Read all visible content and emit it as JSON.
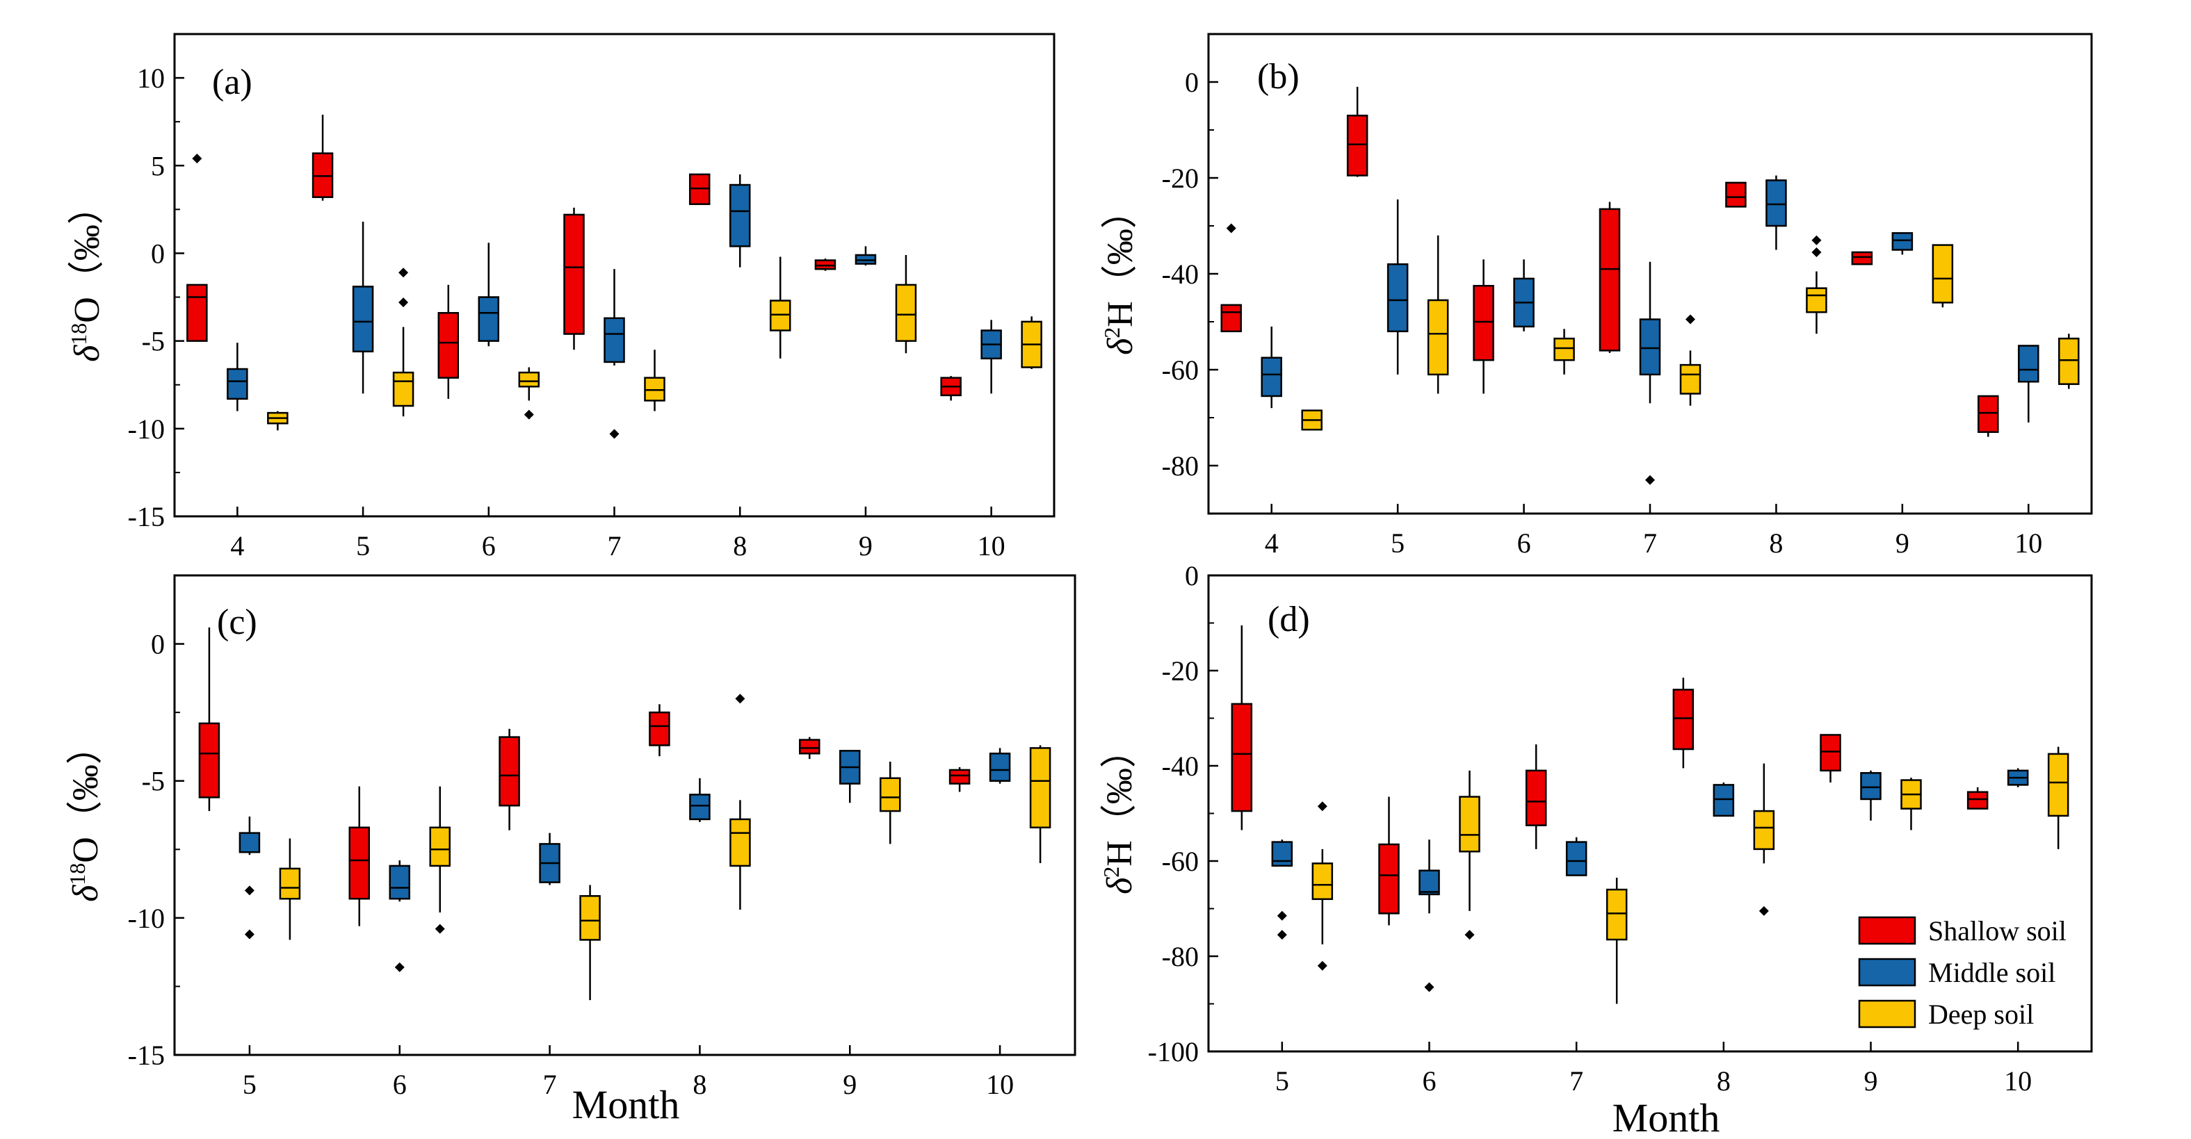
{
  "figure": {
    "x_label": "Month",
    "legend": [
      {
        "label": "Shallow soil",
        "color": "#ee0000"
      },
      {
        "label": "Middle soil",
        "color": "#1565a8"
      },
      {
        "label": "Deep soil",
        "color": "#fbc400"
      }
    ]
  },
  "chart_data": [
    {
      "type": "boxplot",
      "panel_label": "(a)",
      "ylabel": "δ18O (‰)",
      "ylabel_base": "δ",
      "ylabel_sup": "18",
      "ylabel_rest": "O（‰）",
      "xlabel": "",
      "categories": [
        "4",
        "5",
        "6",
        "7",
        "8",
        "9",
        "10"
      ],
      "ylim": [
        -15,
        12.5
      ],
      "yticks": [
        10,
        5,
        0,
        -5,
        -10,
        -15
      ],
      "ytick_labels": [
        "10",
        "5",
        "0",
        "-5",
        "-10",
        "-15"
      ],
      "series": [
        {
          "name": "Shallow soil",
          "boxes": [
            {
              "min": -5.0,
              "q1": -5.0,
              "median": -2.5,
              "q3": -1.8,
              "max": -1.8,
              "outliers": [
                5.4
              ]
            },
            {
              "min": 3.0,
              "q1": 3.2,
              "median": 4.4,
              "q3": 5.7,
              "max": 7.9,
              "outliers": []
            },
            {
              "min": -8.3,
              "q1": -7.1,
              "median": -5.1,
              "q3": -3.4,
              "max": -1.8,
              "outliers": []
            },
            {
              "min": -5.5,
              "q1": -4.6,
              "median": -0.8,
              "q3": 2.2,
              "max": 2.6,
              "outliers": []
            },
            {
              "min": 2.8,
              "q1": 2.8,
              "median": 3.7,
              "q3": 4.5,
              "max": 4.5,
              "outliers": []
            },
            {
              "min": -1.0,
              "q1": -0.9,
              "median": -0.7,
              "q3": -0.4,
              "max": -0.3,
              "outliers": []
            },
            {
              "min": -8.4,
              "q1": -8.1,
              "median": -7.6,
              "q3": -7.1,
              "max": -7.0,
              "outliers": []
            }
          ]
        },
        {
          "name": "Middle soil",
          "boxes": [
            {
              "min": -9.0,
              "q1": -8.3,
              "median": -7.3,
              "q3": -6.6,
              "max": -5.1,
              "outliers": []
            },
            {
              "min": -8.0,
              "q1": -5.6,
              "median": -3.9,
              "q3": -1.9,
              "max": 1.8,
              "outliers": []
            },
            {
              "min": -5.3,
              "q1": -5.0,
              "median": -3.4,
              "q3": -2.5,
              "max": 0.6,
              "outliers": []
            },
            {
              "min": -6.4,
              "q1": -6.2,
              "median": -4.6,
              "q3": -3.7,
              "max": -0.9,
              "outliers": [
                -10.3
              ]
            },
            {
              "min": -0.8,
              "q1": 0.4,
              "median": 2.4,
              "q3": 3.9,
              "max": 4.5,
              "outliers": []
            },
            {
              "min": -0.7,
              "q1": -0.6,
              "median": -0.4,
              "q3": -0.1,
              "max": 0.4,
              "outliers": []
            },
            {
              "min": -8.0,
              "q1": -6.0,
              "median": -5.2,
              "q3": -4.4,
              "max": -3.8,
              "outliers": []
            }
          ]
        },
        {
          "name": "Deep soil",
          "boxes": [
            {
              "min": -10.1,
              "q1": -9.7,
              "median": -9.4,
              "q3": -9.1,
              "max": -9.0,
              "outliers": []
            },
            {
              "min": -9.3,
              "q1": -8.7,
              "median": -7.3,
              "q3": -6.8,
              "max": -4.2,
              "outliers": [
                -2.8,
                -1.1
              ]
            },
            {
              "min": -8.4,
              "q1": -7.6,
              "median": -7.3,
              "q3": -6.8,
              "max": -6.5,
              "outliers": [
                -9.2
              ]
            },
            {
              "min": -9.0,
              "q1": -8.4,
              "median": -7.8,
              "q3": -7.1,
              "max": -5.5,
              "outliers": []
            },
            {
              "min": -6.0,
              "q1": -4.4,
              "median": -3.5,
              "q3": -2.7,
              "max": -0.2,
              "outliers": []
            },
            {
              "min": -5.7,
              "q1": -5.0,
              "median": -3.5,
              "q3": -1.8,
              "max": -0.1,
              "outliers": []
            },
            {
              "min": -6.6,
              "q1": -6.5,
              "median": -5.2,
              "q3": -3.9,
              "max": -3.6,
              "outliers": []
            }
          ]
        }
      ]
    },
    {
      "type": "boxplot",
      "panel_label": "(b)",
      "ylabel": "δ2H (‰)",
      "ylabel_base": "δ",
      "ylabel_sup": "2",
      "ylabel_rest": "H（‰）",
      "xlabel": "",
      "categories": [
        "4",
        "5",
        "6",
        "7",
        "8",
        "9",
        "10"
      ],
      "ylim": [
        -90,
        10
      ],
      "yticks": [
        0,
        -20,
        -40,
        -60,
        -80
      ],
      "ytick_labels": [
        "0",
        "-20",
        "-40",
        "-60",
        "-80"
      ],
      "series": [
        {
          "name": "Shallow soil",
          "boxes": [
            {
              "min": -52.0,
              "q1": -52.0,
              "median": -48.0,
              "q3": -46.5,
              "max": -46.5,
              "outliers": [
                -30.5
              ]
            },
            {
              "min": -19.8,
              "q1": -19.5,
              "median": -13.0,
              "q3": -7.0,
              "max": -1.0,
              "outliers": []
            },
            {
              "min": -65.0,
              "q1": -58.0,
              "median": -50.0,
              "q3": -42.5,
              "max": -37.0,
              "outliers": []
            },
            {
              "min": -56.5,
              "q1": -56.0,
              "median": -39.0,
              "q3": -26.5,
              "max": -25.0,
              "outliers": []
            },
            {
              "min": -26.0,
              "q1": -26.0,
              "median": -24.0,
              "q3": -21.0,
              "max": -21.0,
              "outliers": []
            },
            {
              "min": -38.0,
              "q1": -38.0,
              "median": -36.5,
              "q3": -35.5,
              "max": -35.5,
              "outliers": []
            },
            {
              "min": -74.0,
              "q1": -73.0,
              "median": -69.0,
              "q3": -65.5,
              "max": -65.5,
              "outliers": []
            }
          ]
        },
        {
          "name": "Middle soil",
          "boxes": [
            {
              "min": -68.0,
              "q1": -65.5,
              "median": -61.0,
              "q3": -57.5,
              "max": -51.0,
              "outliers": []
            },
            {
              "min": -61.0,
              "q1": -52.0,
              "median": -45.5,
              "q3": -38.0,
              "max": -24.5,
              "outliers": []
            },
            {
              "min": -52.0,
              "q1": -51.0,
              "median": -46.0,
              "q3": -41.0,
              "max": -37.0,
              "outliers": []
            },
            {
              "min": -67.0,
              "q1": -61.0,
              "median": -55.5,
              "q3": -49.5,
              "max": -37.5,
              "outliers": [
                -83.0
              ]
            },
            {
              "min": -35.0,
              "q1": -30.0,
              "median": -25.5,
              "q3": -20.5,
              "max": -19.5,
              "outliers": []
            },
            {
              "min": -36.0,
              "q1": -35.0,
              "median": -33.0,
              "q3": -31.5,
              "max": -31.5,
              "outliers": []
            },
            {
              "min": -71.0,
              "q1": -62.5,
              "median": -60.0,
              "q3": -55.0,
              "max": -55.0,
              "outliers": []
            }
          ]
        },
        {
          "name": "Deep soil",
          "boxes": [
            {
              "min": -72.5,
              "q1": -72.5,
              "median": -70.5,
              "q3": -68.5,
              "max": -68.5,
              "outliers": []
            },
            {
              "min": -65.0,
              "q1": -61.0,
              "median": -52.5,
              "q3": -45.5,
              "max": -32.0,
              "outliers": []
            },
            {
              "min": -61.0,
              "q1": -58.0,
              "median": -55.5,
              "q3": -53.5,
              "max": -51.5,
              "outliers": []
            },
            {
              "min": -67.5,
              "q1": -65.0,
              "median": -61.0,
              "q3": -59.0,
              "max": -56.0,
              "outliers": [
                -49.5
              ]
            },
            {
              "min": -52.5,
              "q1": -48.0,
              "median": -44.5,
              "q3": -43.0,
              "max": -39.5,
              "outliers": [
                -33.0,
                -35.5
              ]
            },
            {
              "min": -47.0,
              "q1": -46.0,
              "median": -41.0,
              "q3": -34.0,
              "max": -34.0,
              "outliers": []
            },
            {
              "min": -64.0,
              "q1": -63.0,
              "median": -58.0,
              "q3": -53.5,
              "max": -52.5,
              "outliers": []
            }
          ]
        }
      ]
    },
    {
      "type": "boxplot",
      "panel_label": "(c)",
      "ylabel": "δ18O (‰)",
      "ylabel_base": "δ",
      "ylabel_sup": "18",
      "ylabel_rest": "O（‰）",
      "xlabel": "Month",
      "categories": [
        "5",
        "6",
        "7",
        "8",
        "9",
        "10"
      ],
      "ylim": [
        -15,
        2.5
      ],
      "yticks": [
        0,
        -5,
        -10,
        -15
      ],
      "ytick_labels": [
        "0",
        "-5",
        "-10",
        "-15"
      ],
      "series": [
        {
          "name": "Shallow soil",
          "boxes": [
            {
              "min": -6.1,
              "q1": -5.6,
              "median": -4.0,
              "q3": -2.9,
              "max": 0.6,
              "outliers": []
            },
            {
              "min": -10.3,
              "q1": -9.3,
              "median": -7.9,
              "q3": -6.7,
              "max": -5.2,
              "outliers": []
            },
            {
              "min": -6.8,
              "q1": -5.9,
              "median": -4.8,
              "q3": -3.4,
              "max": -3.1,
              "outliers": []
            },
            {
              "min": -4.1,
              "q1": -3.7,
              "median": -3.0,
              "q3": -2.5,
              "max": -2.2,
              "outliers": []
            },
            {
              "min": -4.2,
              "q1": -4.0,
              "median": -3.8,
              "q3": -3.5,
              "max": -3.4,
              "outliers": []
            },
            {
              "min": -5.4,
              "q1": -5.1,
              "median": -4.8,
              "q3": -4.6,
              "max": -4.5,
              "outliers": []
            }
          ]
        },
        {
          "name": "Middle soil",
          "boxes": [
            {
              "min": -7.7,
              "q1": -7.6,
              "median": -7.6,
              "q3": -6.9,
              "max": -6.3,
              "outliers": [
                -9.0,
                -10.6
              ]
            },
            {
              "min": -9.4,
              "q1": -9.3,
              "median": -8.9,
              "q3": -8.1,
              "max": -7.9,
              "outliers": [
                -11.8
              ]
            },
            {
              "min": -8.8,
              "q1": -8.7,
              "median": -8.0,
              "q3": -7.3,
              "max": -6.9,
              "outliers": []
            },
            {
              "min": -6.5,
              "q1": -6.4,
              "median": -5.9,
              "q3": -5.5,
              "max": -4.9,
              "outliers": []
            },
            {
              "min": -5.8,
              "q1": -5.1,
              "median": -4.5,
              "q3": -3.9,
              "max": -3.9,
              "outliers": []
            },
            {
              "min": -5.1,
              "q1": -5.0,
              "median": -4.6,
              "q3": -4.0,
              "max": -3.8,
              "outliers": []
            }
          ]
        },
        {
          "name": "Deep soil",
          "boxes": [
            {
              "min": -10.8,
              "q1": -9.3,
              "median": -8.9,
              "q3": -8.2,
              "max": -7.1,
              "outliers": []
            },
            {
              "min": -9.8,
              "q1": -8.1,
              "median": -7.5,
              "q3": -6.7,
              "max": -5.2,
              "outliers": [
                -10.4
              ]
            },
            {
              "min": -13.0,
              "q1": -10.8,
              "median": -10.1,
              "q3": -9.2,
              "max": -8.8,
              "outliers": []
            },
            {
              "min": -9.7,
              "q1": -8.1,
              "median": -6.9,
              "q3": -6.4,
              "max": -5.7,
              "outliers": [
                -2.0
              ]
            },
            {
              "min": -7.3,
              "q1": -6.1,
              "median": -5.6,
              "q3": -4.9,
              "max": -4.3,
              "outliers": []
            },
            {
              "min": -8.0,
              "q1": -6.7,
              "median": -5.0,
              "q3": -3.8,
              "max": -3.7,
              "outliers": []
            }
          ]
        }
      ]
    },
    {
      "type": "boxplot",
      "panel_label": "(d)",
      "ylabel": "δ2H (‰)",
      "ylabel_base": "δ",
      "ylabel_sup": "2",
      "ylabel_rest": "H（‰）",
      "xlabel": "Month",
      "categories": [
        "5",
        "6",
        "7",
        "8",
        "9",
        "10"
      ],
      "ylim": [
        -100,
        0
      ],
      "yticks": [
        0,
        -20,
        -40,
        -60,
        -80,
        -100
      ],
      "ytick_labels": [
        "0",
        "-20",
        "-40",
        "-60",
        "-80",
        "-100"
      ],
      "series": [
        {
          "name": "Shallow soil",
          "boxes": [
            {
              "min": -53.5,
              "q1": -49.5,
              "median": -37.5,
              "q3": -27.0,
              "max": -10.5,
              "outliers": []
            },
            {
              "min": -73.5,
              "q1": -71.0,
              "median": -63.0,
              "q3": -56.5,
              "max": -46.5,
              "outliers": []
            },
            {
              "min": -57.5,
              "q1": -52.5,
              "median": -47.5,
              "q3": -41.0,
              "max": -35.5,
              "outliers": []
            },
            {
              "min": -40.5,
              "q1": -36.5,
              "median": -30.0,
              "q3": -24.0,
              "max": -21.5,
              "outliers": []
            },
            {
              "min": -43.5,
              "q1": -41.0,
              "median": -37.0,
              "q3": -33.5,
              "max": -33.5,
              "outliers": []
            },
            {
              "min": -49.0,
              "q1": -49.0,
              "median": -47.0,
              "q3": -45.5,
              "max": -44.5,
              "outliers": []
            }
          ]
        },
        {
          "name": "Middle soil",
          "boxes": [
            {
              "min": -61.0,
              "q1": -61.0,
              "median": -60.0,
              "q3": -56.0,
              "max": -55.5,
              "outliers": [
                -71.5,
                -75.5
              ]
            },
            {
              "min": -71.0,
              "q1": -67.0,
              "median": -66.5,
              "q3": -62.0,
              "max": -55.5,
              "outliers": [
                -86.5
              ]
            },
            {
              "min": -63.0,
              "q1": -63.0,
              "median": -60.0,
              "q3": -56.0,
              "max": -55.0,
              "outliers": []
            },
            {
              "min": -50.5,
              "q1": -50.5,
              "median": -47.0,
              "q3": -44.0,
              "max": -43.5,
              "outliers": []
            },
            {
              "min": -51.5,
              "q1": -47.0,
              "median": -44.5,
              "q3": -41.5,
              "max": -41.0,
              "outliers": []
            },
            {
              "min": -44.5,
              "q1": -44.0,
              "median": -42.5,
              "q3": -41.0,
              "max": -40.5,
              "outliers": []
            }
          ]
        },
        {
          "name": "Deep soil",
          "boxes": [
            {
              "min": -77.5,
              "q1": -68.0,
              "median": -65.0,
              "q3": -60.5,
              "max": -57.5,
              "outliers": [
                -48.5,
                -82.0
              ]
            },
            {
              "min": -70.5,
              "q1": -58.0,
              "median": -54.5,
              "q3": -46.5,
              "max": -41.0,
              "outliers": [
                -75.5
              ]
            },
            {
              "min": -90.0,
              "q1": -76.5,
              "median": -71.0,
              "q3": -66.0,
              "max": -63.5,
              "outliers": []
            },
            {
              "min": -60.5,
              "q1": -57.5,
              "median": -53.0,
              "q3": -49.5,
              "max": -39.5,
              "outliers": [
                -70.5
              ]
            },
            {
              "min": -53.5,
              "q1": -49.0,
              "median": -46.0,
              "q3": -43.0,
              "max": -42.5,
              "outliers": []
            },
            {
              "min": -57.5,
              "q1": -50.5,
              "median": -43.5,
              "q3": -37.5,
              "max": -36.0,
              "outliers": []
            }
          ]
        }
      ]
    }
  ]
}
